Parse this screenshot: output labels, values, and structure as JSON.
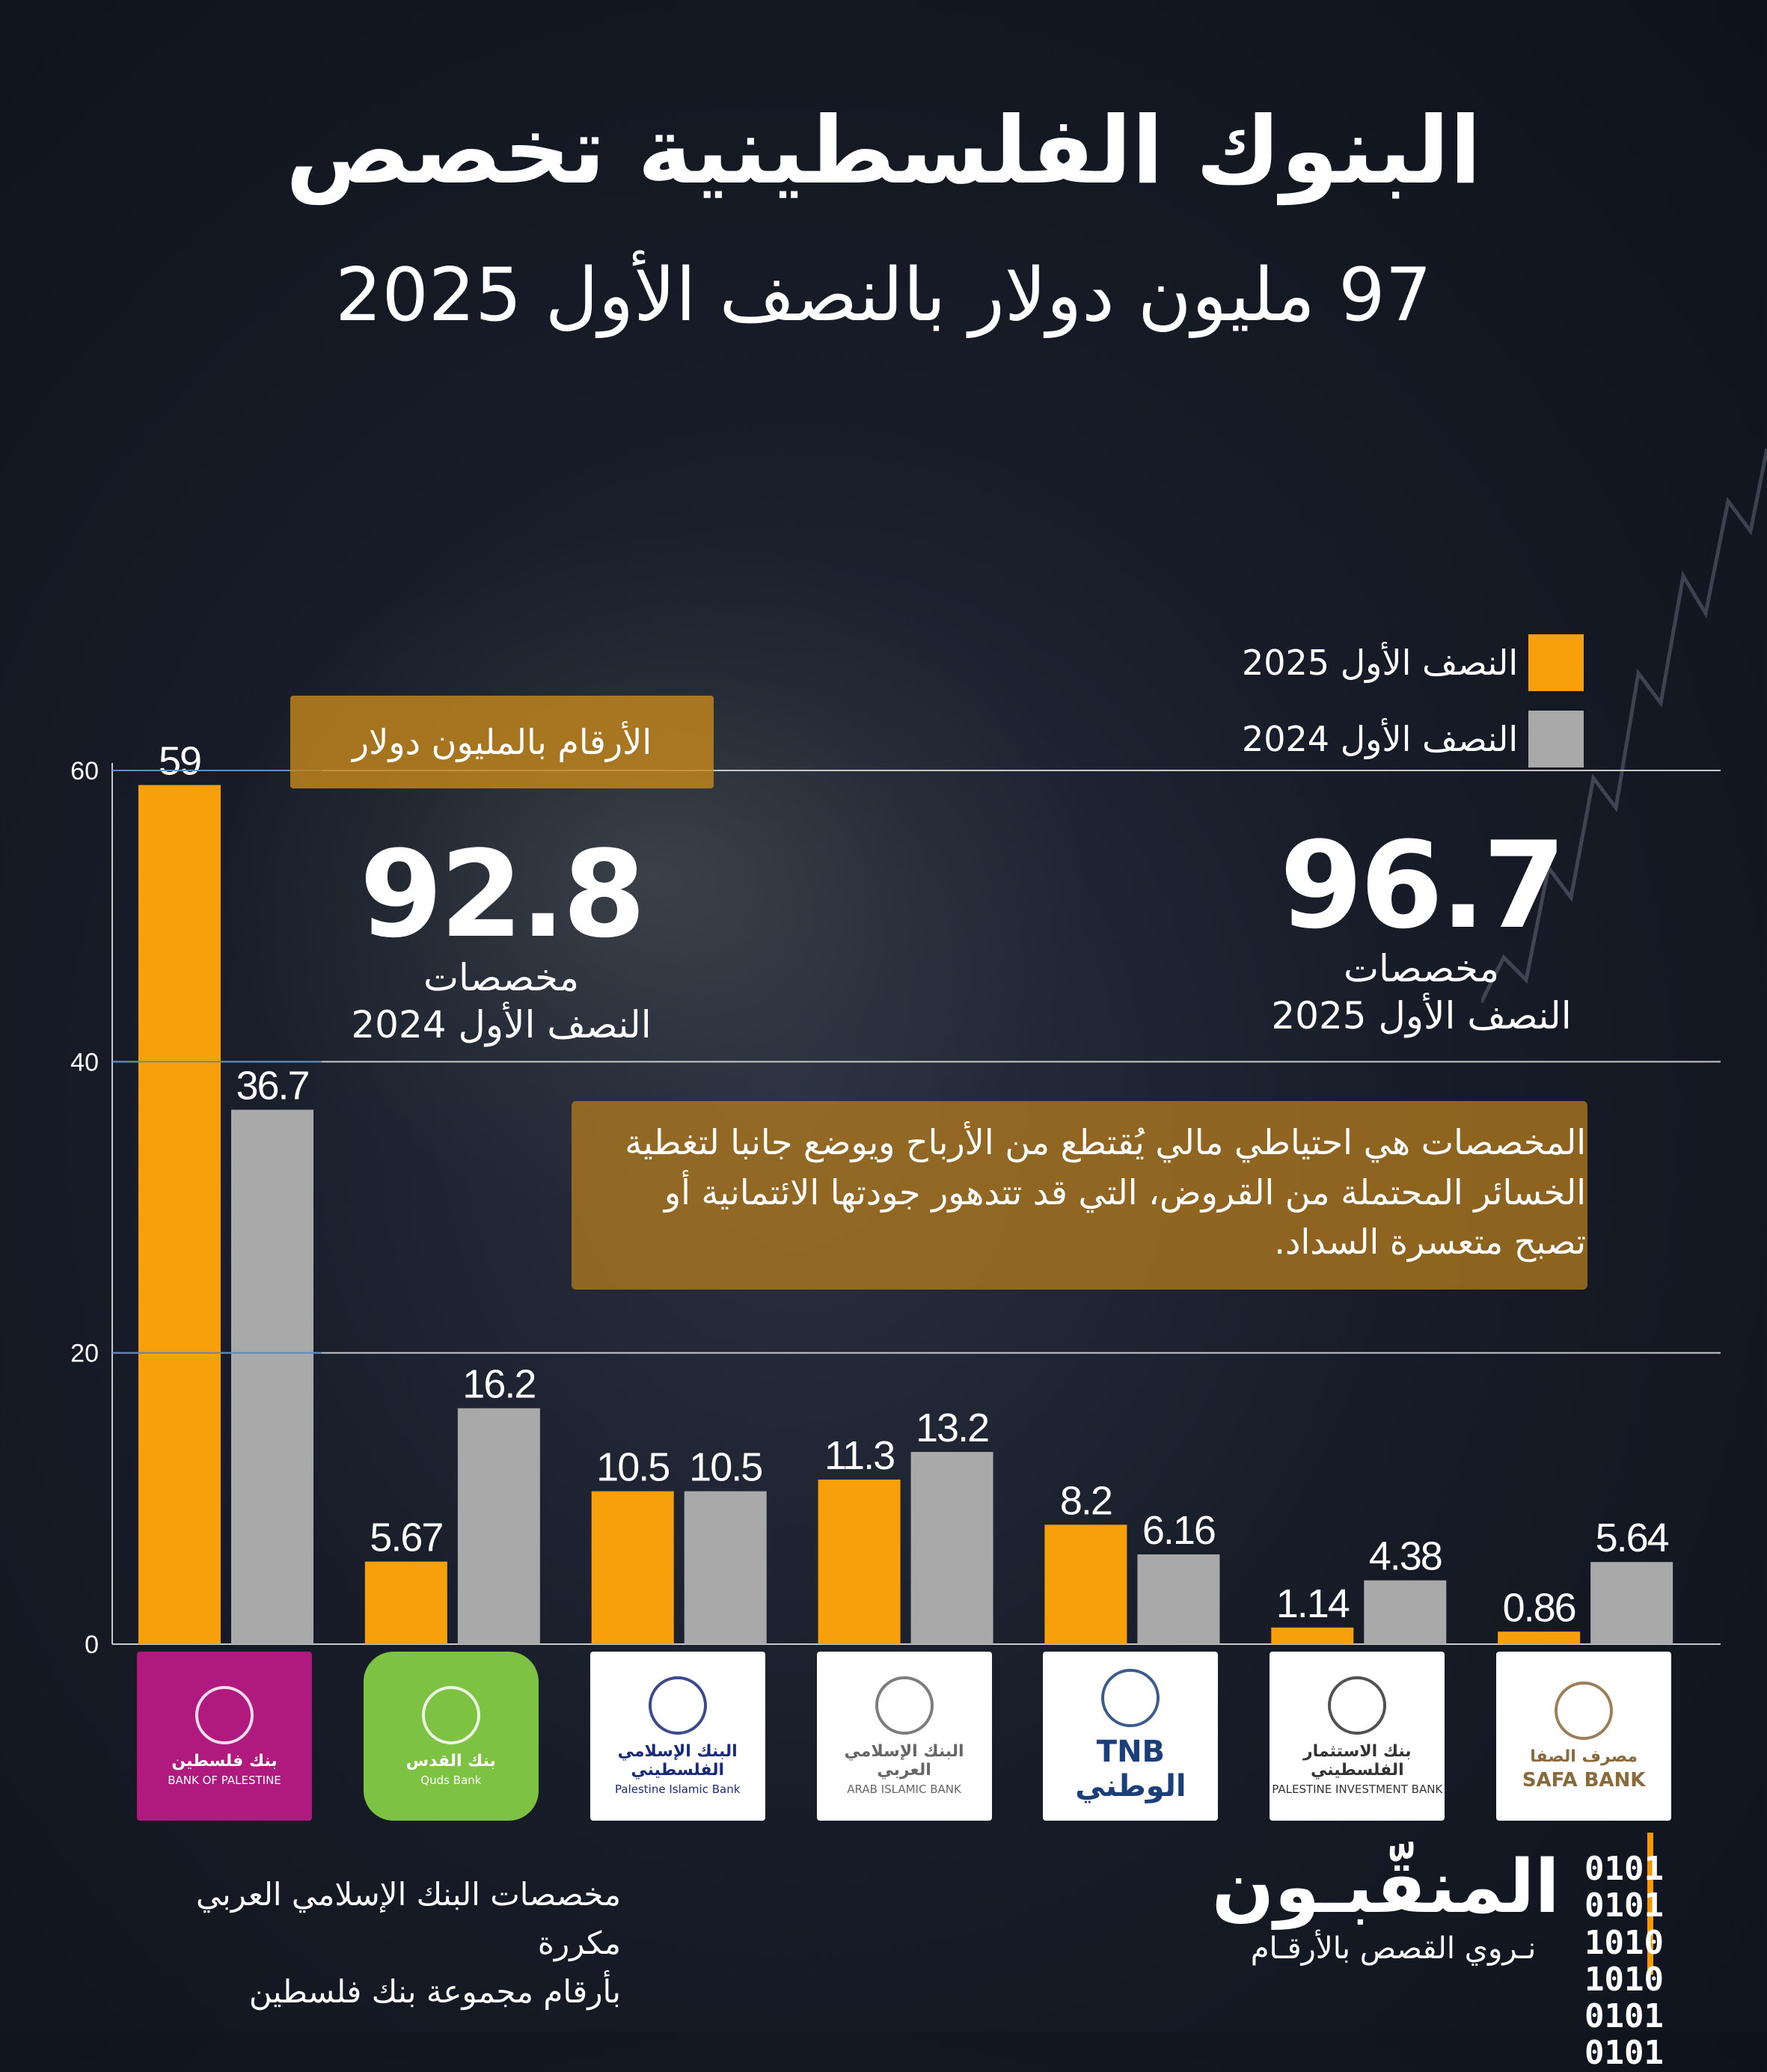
{
  "title": "البنوك الفلسطينية تخصص",
  "subtitle": "97 مليون دولار بالنصف الأول 2025",
  "legend": {
    "h1_2025": "النصف الأول 2025",
    "h1_2024": "النصف الأول 2024"
  },
  "unit_note": "الأرقام بالمليون دولار",
  "stat_2024": {
    "value": "92.8",
    "label1": "مخصصات",
    "label2": "النصف الأول 2024"
  },
  "stat_2025": {
    "value": "96.7",
    "label1": "مخصصات",
    "label2": "النصف الأول 2025"
  },
  "definition": [
    "المخصصات هي احتياطي مالي يُقتطع من الأرباح ويوضع جانبا لتغطية",
    "الخسائر المحتملة من القروض، التي قد تتدهور جودتها الائتمانية أو",
    "تصبح متعسرة السداد."
  ],
  "footnote": [
    "مخصصات البنك الإسلامي العربي مكررة",
    "بأرقام مجموعة بنك فلسطين"
  ],
  "brand": {
    "name": "المنقّبـون",
    "tagline": "نـروي القصص بالأرقـام",
    "binary": [
      "0101 0101",
      "1010 1010",
      "0101 0101"
    ]
  },
  "logos": [
    {
      "line1": "بنك فلسطين",
      "line2": "BANK OF PALESTINE",
      "bg": "#b0197e",
      "fg": "#ffffff"
    },
    {
      "line1": "بنك القدس",
      "line2": "Quds Bank",
      "bg": "#7dc242",
      "fg": "#ffffff"
    },
    {
      "line1": "البنك الإسلامي الفلسطيني",
      "line2": "Palestine Islamic Bank",
      "bg": "#ffffff",
      "fg": "#1a2a7a"
    },
    {
      "line1": "البنك الإسلامي العربي",
      "line2": "ARAB ISLAMIC BANK",
      "bg": "#ffffff",
      "fg": "#666666"
    },
    {
      "line1": "TNB الوطني",
      "line2": "",
      "bg": "#ffffff",
      "fg": "#1a3f7a"
    },
    {
      "line1": "بنك الاستثمار الفلسطيني",
      "line2": "PALESTINE INVESTMENT BANK",
      "bg": "#ffffff",
      "fg": "#333333"
    },
    {
      "line1": "مصرف الصفا",
      "line2": "SAFA BANK",
      "bg": "#ffffff",
      "fg": "#8a6a3a"
    }
  ],
  "colors": {
    "h1_2025": "#f7a00c",
    "h1_2024": "#a9a9a9",
    "gridline": "#c9c9c9"
  },
  "chart_data": {
    "type": "bar",
    "categories": [
      "بنك فلسطين",
      "بنك القدس",
      "البنك الإسلامي الفلسطيني",
      "البنك الإسلامي العربي",
      "البنك الوطني",
      "بنك الاستثمار الفلسطيني",
      "مصرف الصفا"
    ],
    "series": [
      {
        "name": "النصف الأول 2025",
        "values": [
          59,
          5.67,
          10.5,
          11.3,
          8.2,
          1.14,
          0.86
        ],
        "labels": [
          "59",
          "5.67",
          "10.5",
          "11.3",
          "8.2",
          "1.14",
          "0.86"
        ]
      },
      {
        "name": "النصف الأول 2024",
        "values": [
          36.7,
          16.2,
          10.5,
          13.2,
          6.16,
          4.38,
          5.64
        ],
        "labels": [
          "36.7",
          "16.2",
          "10.5",
          "13.2",
          "6.16",
          "4.38",
          "5.64"
        ]
      }
    ],
    "ylim": [
      0,
      60
    ],
    "yticks": [
      "0",
      "20",
      "40",
      "60"
    ],
    "grid": true,
    "legend_position": "top-right"
  }
}
